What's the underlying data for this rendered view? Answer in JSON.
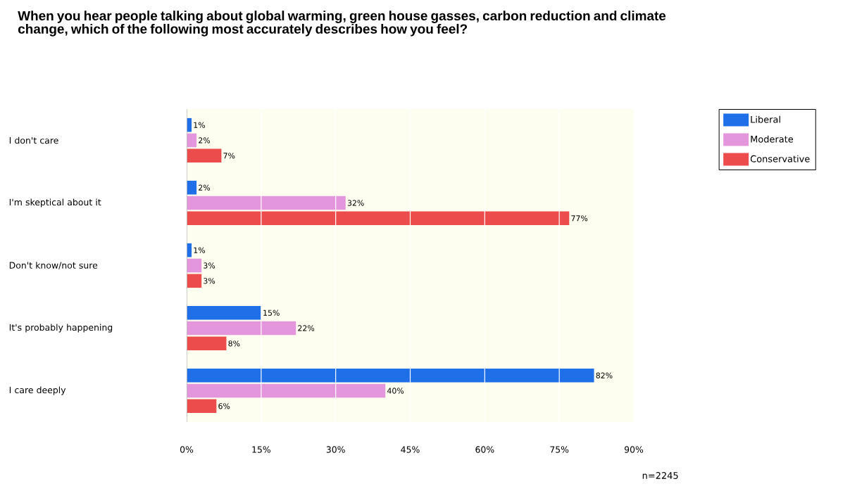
{
  "chart_data": {
    "type": "bar",
    "orientation": "horizontal",
    "title": "When you hear people talking about global warming, green house gasses, carbon reduction and climate change, which of the following most accurately describes how you feel?",
    "categories": [
      "I don't care",
      "I'm skeptical about it",
      "Don't know/not sure",
      "It's probably happening",
      "I care deeply"
    ],
    "series": [
      {
        "name": "Liberal",
        "color": "#1f6fe8",
        "values": [
          1,
          2,
          1,
          15,
          82
        ],
        "value_labels": [
          "1%",
          "2%",
          "1%",
          "15%",
          "82%"
        ]
      },
      {
        "name": "Moderate",
        "color": "#e496dc",
        "values": [
          2,
          32,
          3,
          22,
          40
        ],
        "value_labels": [
          "2%",
          "32%",
          "3%",
          "22%",
          "40%"
        ]
      },
      {
        "name": "Conservative",
        "color": "#ec4c4c",
        "values": [
          7,
          77,
          3,
          8,
          6
        ],
        "value_labels": [
          "7%",
          "77%",
          "3%",
          "8%",
          "6%"
        ]
      }
    ],
    "xlim": [
      0,
      90
    ],
    "xticks": [
      {
        "value": 0,
        "label": "0%"
      },
      {
        "value": 15,
        "label": "15%"
      },
      {
        "value": 30,
        "label": "30%"
      },
      {
        "value": 45,
        "label": "45%"
      },
      {
        "value": 60,
        "label": "60%"
      },
      {
        "value": 75,
        "label": "75%"
      },
      {
        "value": 90,
        "label": "90%"
      }
    ],
    "grid": "x",
    "legend": "top right",
    "annotations": [
      "n=2245"
    ]
  }
}
